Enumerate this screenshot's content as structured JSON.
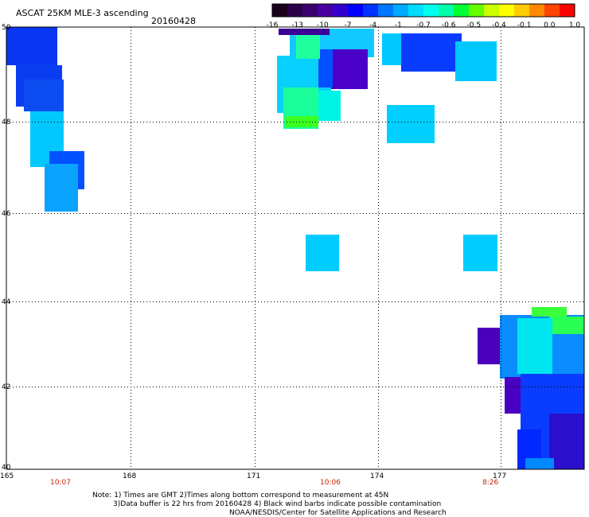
{
  "header": {
    "title": "ASCAT 25KM MLE-3 ascending",
    "date": "20160428"
  },
  "colorbar": {
    "colors": [
      "#1a001a",
      "#2a0048",
      "#3a0070",
      "#4a00a0",
      "#3300cc",
      "#0000ff",
      "#0033ff",
      "#0077ff",
      "#00aaff",
      "#00ddff",
      "#00ffee",
      "#00ffaa",
      "#00ff33",
      "#66ff00",
      "#ccff00",
      "#ffff00",
      "#ffcc00",
      "#ff8800",
      "#ff4400",
      "#ff0000"
    ],
    "labels": [
      "-16",
      "-13",
      "-10",
      "-7",
      "-4",
      "-1",
      "-0.7",
      "-0.6",
      "-0.5",
      "-0.4",
      "-0.1",
      "0.0",
      "1.0"
    ]
  },
  "axes": {
    "lon_ticks": [
      "165",
      "168",
      "171",
      "174",
      "177"
    ],
    "lat_ticks": [
      "50",
      "48",
      "46",
      "44",
      "42",
      "40"
    ]
  },
  "pass_times": [
    "10:07",
    "10:06",
    "8:26"
  ],
  "notes": {
    "line1": "Note: 1) Times are GMT 2)Times along bottom correspond to measurement at 45N",
    "line2": "3)Data buffer is 22 hrs from 20160428 4) Black wind barbs indicate possible contamination",
    "line3": "NOAA/NESDIS/Center for Satellite Applications and Research"
  }
}
